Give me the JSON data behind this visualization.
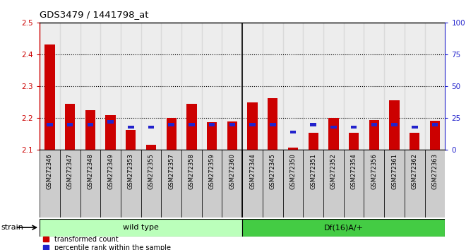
{
  "title": "GDS3479 / 1441798_at",
  "categories": [
    "GSM272346",
    "GSM272347",
    "GSM272348",
    "GSM272349",
    "GSM272353",
    "GSM272355",
    "GSM272357",
    "GSM272358",
    "GSM272359",
    "GSM272360",
    "GSM272344",
    "GSM272345",
    "GSM272350",
    "GSM272351",
    "GSM272352",
    "GSM272354",
    "GSM272356",
    "GSM272361",
    "GSM272362",
    "GSM272363"
  ],
  "red_values": [
    2.432,
    2.245,
    2.225,
    2.21,
    2.162,
    2.116,
    2.2,
    2.245,
    2.188,
    2.19,
    2.25,
    2.262,
    2.108,
    2.155,
    2.2,
    2.155,
    2.195,
    2.255,
    2.155,
    2.192
  ],
  "blue_values": [
    20,
    20,
    20,
    22,
    18,
    18,
    20,
    20,
    20,
    20,
    20,
    20,
    14,
    20,
    18,
    18,
    20,
    20,
    18,
    20
  ],
  "baseline": 2.1,
  "ylim_left": [
    2.1,
    2.5
  ],
  "ylim_right": [
    0,
    100
  ],
  "yticks_left": [
    2.1,
    2.2,
    2.3,
    2.4,
    2.5
  ],
  "yticks_right": [
    0,
    25,
    50,
    75,
    100
  ],
  "group1_label": "wild type",
  "group2_label": "Df(16)A/+",
  "group1_count": 10,
  "group2_count": 10,
  "strain_label": "strain",
  "legend1": "transformed count",
  "legend2": "percentile rank within the sample",
  "red_color": "#cc0000",
  "blue_color": "#2222cc",
  "group1_color": "#bbffbb",
  "group2_color": "#44cc44",
  "tick_bg_color": "#cccccc",
  "bar_width": 0.5,
  "blue_bar_width": 0.3,
  "blue_bar_height": 0.01,
  "grid_color": "#555555",
  "spine_color": "#000000"
}
